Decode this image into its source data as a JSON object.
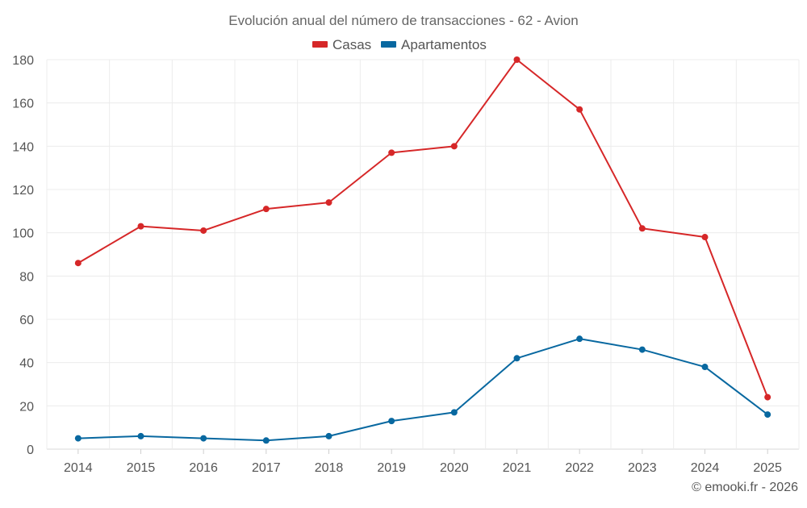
{
  "chart_data": {
    "type": "line",
    "title": "Evolución anual del número de transacciones - 62 - Avion",
    "categories": [
      "2014",
      "2015",
      "2016",
      "2017",
      "2018",
      "2019",
      "2020",
      "2021",
      "2022",
      "2023",
      "2024",
      "2025"
    ],
    "series": [
      {
        "name": "Casas",
        "color": "#d62728",
        "values": [
          86,
          103,
          101,
          111,
          114,
          137,
          140,
          180,
          157,
          102,
          98,
          24
        ]
      },
      {
        "name": "Apartamentos",
        "color": "#0868a0",
        "values": [
          5,
          6,
          5,
          4,
          6,
          13,
          17,
          42,
          51,
          46,
          38,
          16
        ]
      }
    ],
    "ylim": [
      0,
      180
    ],
    "yticks": [
      "0",
      "20",
      "40",
      "60",
      "80",
      "100",
      "120",
      "140",
      "160",
      "180"
    ],
    "xlabel": "",
    "ylabel": "",
    "grid": true,
    "legend_position": "top-center"
  },
  "footer": {
    "credit": "© emooki.fr - 2026"
  }
}
